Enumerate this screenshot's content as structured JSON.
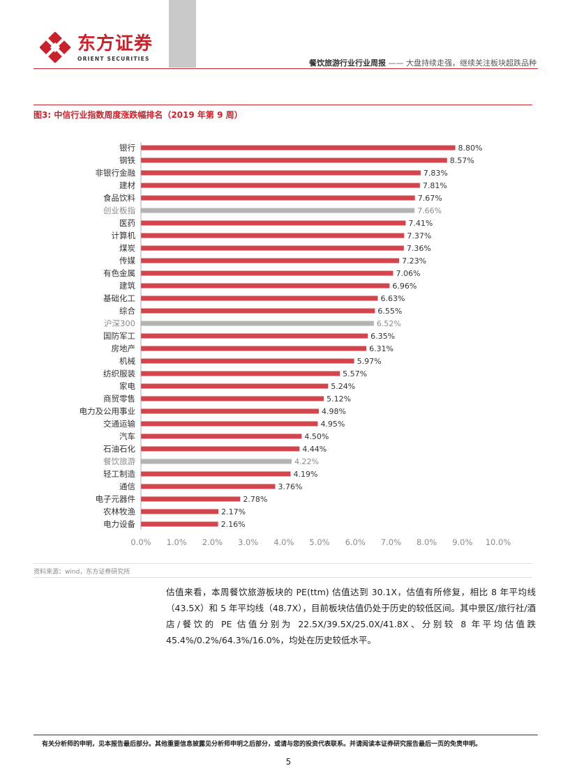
{
  "header": {
    "logo_cn": "东方证券",
    "logo_en": "ORIENT  SECURITIES",
    "report_title_bold": "餐饮旅游行业行业周报",
    "report_title_rest": "—— 大盘持续走强，继续关注板块超跌品种"
  },
  "figure": {
    "title": "图3: 中信行业指数周度涨跌幅排名（2019 年第 9 周）",
    "source": "资料来源：wind，东方证券研究所"
  },
  "chart_data": {
    "type": "bar",
    "orientation": "horizontal",
    "categories": [
      "银行",
      "钢铁",
      "非银行金融",
      "建材",
      "食品饮料",
      "创业板指",
      "医药",
      "计算机",
      "煤炭",
      "传媒",
      "有色金属",
      "建筑",
      "基础化工",
      "综合",
      "沪深300",
      "国防军工",
      "房地产",
      "机械",
      "纺织服装",
      "家电",
      "商贸零售",
      "电力及公用事业",
      "交通运输",
      "汽车",
      "石油石化",
      "餐饮旅游",
      "轻工制造",
      "通信",
      "电子元器件",
      "农林牧渔",
      "电力设备"
    ],
    "values": [
      8.8,
      8.57,
      7.83,
      7.81,
      7.67,
      7.66,
      7.41,
      7.37,
      7.36,
      7.23,
      7.06,
      6.96,
      6.63,
      6.55,
      6.52,
      6.35,
      6.31,
      5.97,
      5.57,
      5.24,
      5.12,
      4.98,
      4.95,
      4.5,
      4.44,
      4.22,
      4.19,
      3.76,
      2.78,
      2.17,
      2.16
    ],
    "value_labels": [
      "8.80%",
      "8.57%",
      "7.83%",
      "7.81%",
      "7.67%",
      "7.66%",
      "7.41%",
      "7.37%",
      "7.36%",
      "7.23%",
      "7.06%",
      "6.96%",
      "6.63%",
      "6.55%",
      "6.52%",
      "6.35%",
      "6.31%",
      "5.97%",
      "5.57%",
      "5.24%",
      "5.12%",
      "4.98%",
      "4.95%",
      "4.50%",
      "4.44%",
      "4.22%",
      "4.19%",
      "3.76%",
      "2.78%",
      "2.17%",
      "2.16%"
    ],
    "highlighted": [
      "创业板指",
      "沪深300",
      "餐饮旅游"
    ],
    "xlim": [
      0,
      10
    ],
    "xticks": [
      "0.0%",
      "1.0%",
      "2.0%",
      "3.0%",
      "4.0%",
      "5.0%",
      "6.0%",
      "7.0%",
      "8.0%",
      "9.0%",
      "10.0%"
    ],
    "colors": {
      "bar": "#d2454c",
      "highlight": "#b3b3b3",
      "label": "#333333",
      "highlight_label": "#8a8a8a"
    },
    "grid": false
  },
  "body": {
    "paragraph": "估值来看，本周餐饮旅游板块的 PE(ttm) 估值达到 30.1X，估值有所修复，相比 8 年平均线（43.5X）和 5 年平均线（48.7X），目前板块估值仍处于历史的较低区间。其中景区/旅行社/酒店/餐饮的 PE 估值分别为 22.5X/39.5X/25.0X/41.8X、分别较 8 年平均估值跌 45.4%/0.2%/64.3%/16.0%，均处在历史较低水平。"
  },
  "footer": {
    "disclaimer": "有关分析师的申明，见本报告最后部分。其他重要信息披露见分析师申明之后部分，或请与您的投资代表联系。并请阅读本证券研究报告最后一页的免责申明。",
    "page_number": "5"
  }
}
